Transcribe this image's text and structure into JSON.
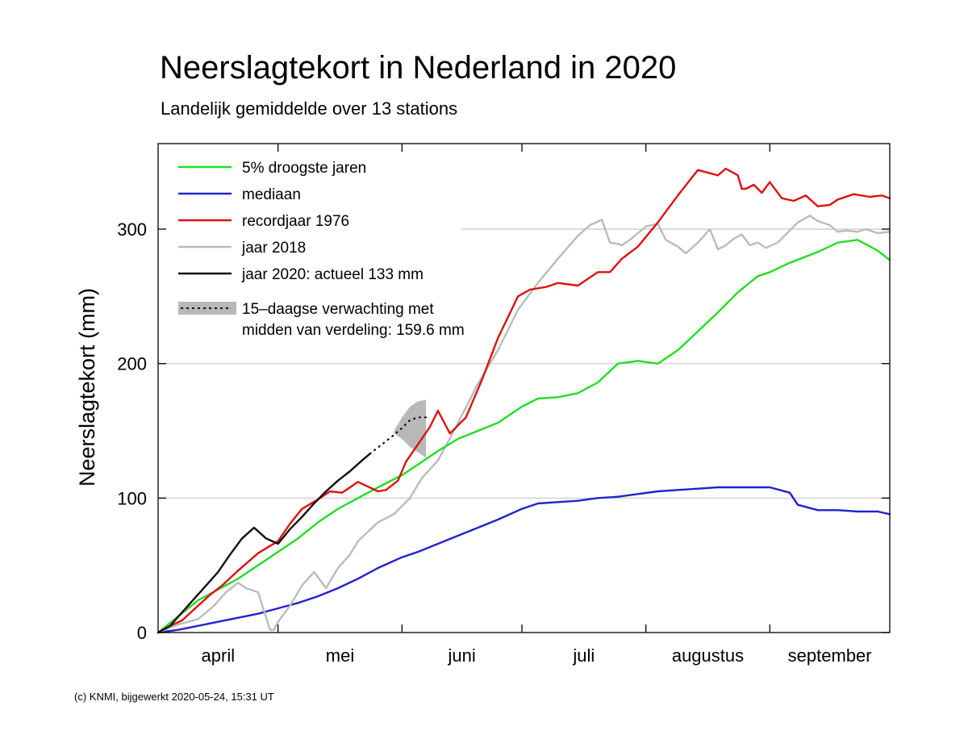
{
  "title": "Neerslagtekort in Nederland in 2020",
  "subtitle": "Landelijk gemiddelde over 13 stations",
  "footer": "(c) KNMI, bijgewerkt 2020-05-24, 15:31 UT",
  "colors": {
    "droogste": "#22dd22",
    "mediaan": "#2222cc",
    "record1976": "#dd1111",
    "jaar2018": "#bbbbbb",
    "jaar2020": "#111111",
    "forecast_band": "#b8b8b8"
  },
  "chart_data": {
    "type": "line",
    "title": "Neerslagtekort in Nederland in 2020",
    "subtitle": "Landelijk gemiddelde over 13 stations",
    "ylabel": "Neerslagtekort (mm)",
    "xlabel": "",
    "ylim": [
      0,
      360
    ],
    "xlim_days": [
      0,
      183
    ],
    "yticks": [
      0,
      100,
      200,
      300
    ],
    "grid": "horizontal",
    "legend_position": "top-left",
    "months": [
      {
        "label": "april",
        "start": 0,
        "end": 30
      },
      {
        "label": "mei",
        "start": 30,
        "end": 61
      },
      {
        "label": "juni",
        "start": 61,
        "end": 91
      },
      {
        "label": "juli",
        "start": 91,
        "end": 122
      },
      {
        "label": "augustus",
        "start": 122,
        "end": 153
      },
      {
        "label": "september",
        "start": 153,
        "end": 183
      }
    ],
    "legend": [
      {
        "key": "droogste",
        "label": "5% droogste jaren"
      },
      {
        "key": "mediaan",
        "label": "mediaan"
      },
      {
        "key": "record1976",
        "label": "recordjaar 1976"
      },
      {
        "key": "jaar2018",
        "label": "jaar 2018"
      },
      {
        "key": "jaar2020",
        "label": "jaar 2020: actueel 133 mm"
      }
    ],
    "forecast_legend": [
      "15–daagse verwachting met",
      "midden van verdeling: 159.6 mm"
    ],
    "series": [
      {
        "key": "droogste",
        "name": "5% droogste jaren",
        "x": [
          0,
          5,
          10,
          15,
          20,
          25,
          30,
          35,
          40,
          45,
          50,
          55,
          61,
          65,
          70,
          75,
          80,
          85,
          91,
          95,
          100,
          105,
          110,
          115,
          120,
          125,
          130,
          135,
          140,
          145,
          150,
          153,
          158,
          165,
          170,
          175,
          180,
          183
        ],
        "y": [
          0,
          12,
          24,
          32,
          40,
          50,
          60,
          70,
          82,
          92,
          100,
          108,
          117,
          125,
          135,
          144,
          150,
          156,
          168,
          174,
          175,
          178,
          186,
          200,
          202,
          200,
          210,
          224,
          238,
          253,
          265,
          268,
          275,
          283,
          290,
          292,
          284,
          277
        ]
      },
      {
        "key": "mediaan",
        "name": "mediaan",
        "x": [
          0,
          5,
          10,
          15,
          20,
          25,
          30,
          35,
          40,
          45,
          50,
          55,
          61,
          65,
          70,
          75,
          80,
          85,
          91,
          95,
          100,
          105,
          110,
          115,
          120,
          125,
          130,
          135,
          140,
          145,
          150,
          153,
          158,
          160,
          165,
          170,
          175,
          180,
          183
        ],
        "y": [
          0,
          2,
          5,
          8,
          11,
          14,
          18,
          22,
          27,
          33,
          40,
          48,
          56,
          60,
          66,
          72,
          78,
          84,
          92,
          96,
          97,
          98,
          100,
          101,
          103,
          105,
          106,
          107,
          108,
          108,
          108,
          108,
          104,
          95,
          91,
          91,
          90,
          90,
          88
        ]
      },
      {
        "key": "record1976",
        "name": "recordjaar 1976",
        "x": [
          0,
          3,
          6,
          10,
          13,
          16,
          20,
          25,
          30,
          33,
          36,
          40,
          43,
          46,
          50,
          55,
          57,
          60,
          62,
          65,
          68,
          70,
          73,
          77,
          81,
          85,
          90,
          93,
          97,
          100,
          105,
          110,
          113,
          116,
          120,
          125,
          130,
          135,
          140,
          142,
          145,
          146,
          147,
          149,
          151,
          153,
          156,
          159,
          162,
          165,
          168,
          170,
          174,
          178,
          181,
          183
        ],
        "y": [
          0,
          5,
          9,
          20,
          28,
          35,
          46,
          59,
          68,
          81,
          92,
          99,
          105,
          104,
          112,
          105,
          106,
          113,
          127,
          140,
          153,
          165,
          148,
          160,
          188,
          219,
          250,
          255,
          257,
          260,
          258,
          268,
          268,
          278,
          287,
          305,
          325,
          344,
          340,
          345,
          340,
          330,
          330,
          333,
          327,
          335,
          323,
          321,
          325,
          317,
          318,
          322,
          326,
          324,
          325,
          323
        ]
      },
      {
        "key": "jaar2018",
        "name": "jaar 2018",
        "x": [
          0,
          5,
          10,
          14,
          17,
          20,
          22,
          25,
          28,
          29,
          30,
          33,
          36,
          39,
          42,
          45,
          48,
          50,
          55,
          59,
          63,
          66,
          70,
          74,
          80,
          85,
          90,
          95,
          100,
          105,
          108,
          111,
          113,
          115,
          116,
          118,
          120,
          122,
          125,
          127,
          130,
          132,
          135,
          138,
          140,
          142,
          144,
          146,
          148,
          150,
          152,
          155,
          157,
          160,
          163,
          165,
          168,
          170,
          172,
          175,
          177,
          180,
          183
        ],
        "y": [
          0,
          6,
          10,
          20,
          30,
          37,
          33,
          30,
          2,
          2,
          8,
          20,
          35,
          45,
          33,
          48,
          58,
          68,
          82,
          88,
          100,
          115,
          128,
          150,
          185,
          210,
          240,
          260,
          278,
          295,
          303,
          307,
          290,
          289,
          288,
          292,
          297,
          302,
          304,
          292,
          287,
          282,
          290,
          300,
          285,
          288,
          293,
          296,
          288,
          290,
          286,
          290,
          296,
          305,
          310,
          306,
          303,
          298,
          299,
          298,
          300,
          297,
          298
        ]
      },
      {
        "key": "jaar2020",
        "name": "jaar 2020",
        "x": [
          0,
          3,
          6,
          9,
          12,
          15,
          18,
          21,
          24,
          27,
          30,
          33,
          36,
          39,
          42,
          45,
          48,
          51,
          53
        ],
        "y": [
          0,
          5,
          15,
          25,
          35,
          45,
          58,
          70,
          78,
          70,
          66,
          77,
          86,
          96,
          105,
          113,
          120,
          128,
          133
        ]
      },
      {
        "key": "forecast",
        "name": "15-daagse verwachting",
        "x": [
          53,
          56,
          59,
          61,
          63,
          65,
          67
        ],
        "y": [
          133,
          140,
          147,
          152,
          158,
          160,
          160
        ]
      }
    ],
    "forecast_band": {
      "x": [
        59,
        61,
        63,
        65,
        67
      ],
      "upper": [
        150,
        160,
        168,
        172,
        173
      ],
      "lower": [
        148,
        144,
        138,
        134,
        130
      ]
    }
  }
}
